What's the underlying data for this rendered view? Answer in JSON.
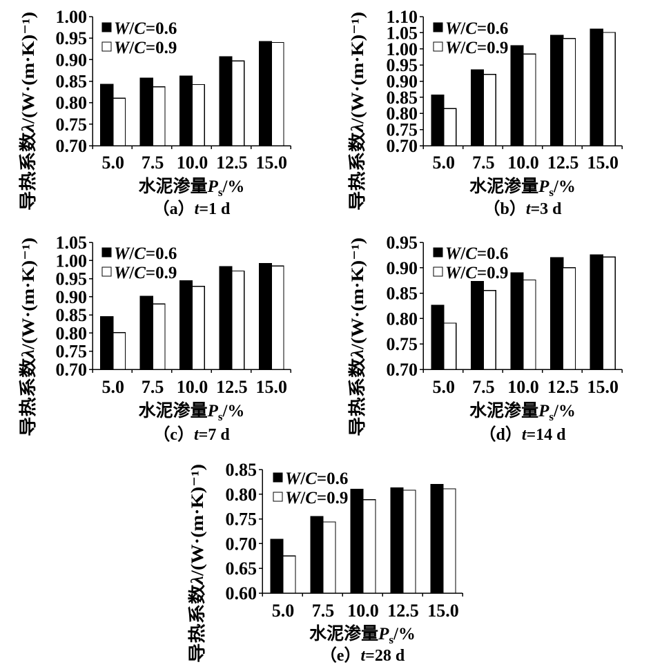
{
  "chart_data": [
    {
      "type": "bar",
      "caption": "（a）t=1 d",
      "ylabel": "导热系数λ/(W·(m·K)⁻¹)",
      "xlabel": "水泥渗量Ps/%",
      "categories": [
        "5.0",
        "7.5",
        "10.0",
        "12.5",
        "15.0"
      ],
      "ylim": [
        0.7,
        1.0
      ],
      "yticks": [
        "0.70",
        "0.75",
        "0.80",
        "0.85",
        "0.90",
        "0.95",
        "1.00"
      ],
      "series": [
        {
          "name": "W/C=0.6",
          "color": "#000000",
          "values": [
            0.843,
            0.857,
            0.862,
            0.907,
            0.942
          ]
        },
        {
          "name": "W/C=0.9",
          "color": "#ffffff",
          "values": [
            0.81,
            0.837,
            0.842,
            0.897,
            0.94
          ]
        }
      ],
      "legend": "top-left",
      "grid": false
    },
    {
      "type": "bar",
      "caption": "（b）t=3 d",
      "ylabel": "导热系数λ/(W·(m·K)⁻¹)",
      "xlabel": "水泥渗量Ps/%",
      "categories": [
        "5.0",
        "7.5",
        "10.0",
        "12.5",
        "15.0"
      ],
      "ylim": [
        0.7,
        1.1
      ],
      "yticks": [
        "0.70",
        "0.75",
        "0.80",
        "0.85",
        "0.90",
        "0.95",
        "1.00",
        "1.05",
        "1.10"
      ],
      "series": [
        {
          "name": "W/C=0.6",
          "color": "#000000",
          "values": [
            0.857,
            0.935,
            1.01,
            1.042,
            1.061
          ]
        },
        {
          "name": "W/C=0.9",
          "color": "#ffffff",
          "values": [
            0.815,
            0.921,
            0.984,
            1.032,
            1.051
          ]
        }
      ],
      "legend": "top-left",
      "grid": false
    },
    {
      "type": "bar",
      "caption": "（c）t=7 d",
      "ylabel": "导热系数λ/(W·(m·K)⁻¹)",
      "xlabel": "水泥渗量Ps/%",
      "categories": [
        "5.0",
        "7.5",
        "10.0",
        "12.5",
        "15.0"
      ],
      "ylim": [
        0.7,
        1.05
      ],
      "yticks": [
        "0.70",
        "0.75",
        "0.80",
        "0.85",
        "0.90",
        "0.95",
        "1.00",
        "1.05"
      ],
      "series": [
        {
          "name": "W/C=0.6",
          "color": "#000000",
          "values": [
            0.845,
            0.901,
            0.944,
            0.983,
            0.992
          ]
        },
        {
          "name": "W/C=0.9",
          "color": "#ffffff",
          "values": [
            0.801,
            0.88,
            0.929,
            0.971,
            0.985
          ]
        }
      ],
      "legend": "top-left",
      "grid": false
    },
    {
      "type": "bar",
      "caption": "（d）t=14 d",
      "ylabel": "导热系数λ/(W·(m·K)⁻¹)",
      "xlabel": "水泥渗量Ps/%",
      "categories": [
        "5.0",
        "7.5",
        "10.0",
        "12.5",
        "15.0"
      ],
      "ylim": [
        0.7,
        0.95
      ],
      "yticks": [
        "0.70",
        "0.75",
        "0.80",
        "0.85",
        "0.90",
        "0.95"
      ],
      "series": [
        {
          "name": "W/C=0.6",
          "color": "#000000",
          "values": [
            0.826,
            0.873,
            0.89,
            0.92,
            0.925
          ]
        },
        {
          "name": "W/C=0.9",
          "color": "#ffffff",
          "values": [
            0.791,
            0.855,
            0.876,
            0.9,
            0.921
          ]
        }
      ],
      "legend": "top-left",
      "grid": false
    },
    {
      "type": "bar",
      "caption": "（e）t=28 d",
      "ylabel": "导热系数λ/(W·(m·K)⁻¹)",
      "xlabel": "水泥渗量Ps/%",
      "categories": [
        "5.0",
        "7.5",
        "10.0",
        "12.5",
        "15.0"
      ],
      "ylim": [
        0.6,
        0.85
      ],
      "yticks": [
        "0.60",
        "0.65",
        "0.70",
        "0.75",
        "0.80",
        "0.85"
      ],
      "series": [
        {
          "name": "W/C=0.6",
          "color": "#000000",
          "values": [
            0.709,
            0.755,
            0.81,
            0.813,
            0.82
          ]
        },
        {
          "name": "W/C=0.9",
          "color": "#ffffff",
          "values": [
            0.675,
            0.744,
            0.789,
            0.808,
            0.811
          ]
        }
      ],
      "legend": "top-left",
      "grid": false
    }
  ]
}
